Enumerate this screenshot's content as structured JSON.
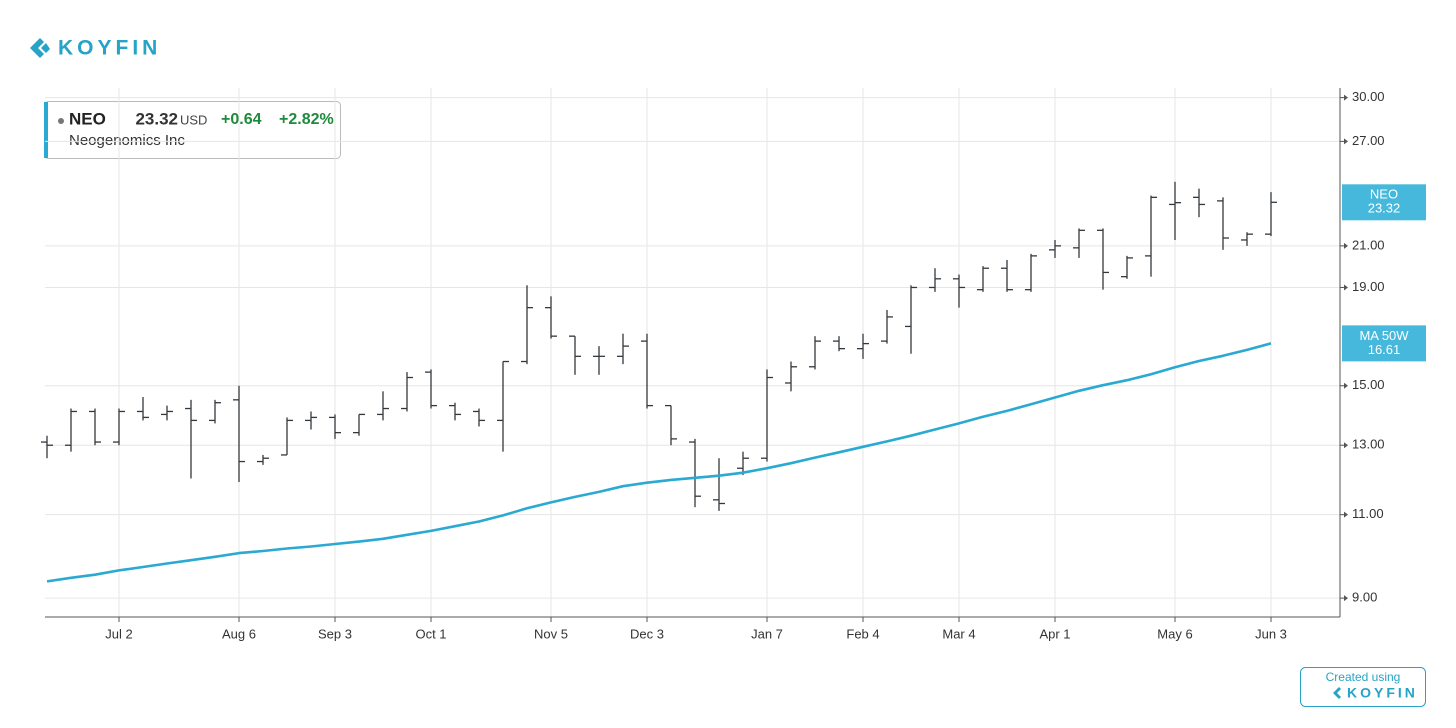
{
  "brand": {
    "logo": "KOYFIN",
    "footer_caption": "Created using",
    "footer_logo": "KOYFIN"
  },
  "quote": {
    "symbol": "NEO",
    "price": 23.32,
    "currency": "USD",
    "change": "+0.64",
    "change_percent": "+2.82%",
    "company": "Neogenomics Inc"
  },
  "chart_data": {
    "type": "ohlc",
    "log": true,
    "grid": true,
    "categories": [
      null,
      null,
      null,
      "Jul 2",
      null,
      null,
      null,
      null,
      "Aug 6",
      null,
      null,
      null,
      "Sep 3",
      null,
      null,
      null,
      "Oct 1",
      null,
      null,
      null,
      null,
      "Nov 5",
      null,
      null,
      null,
      "Dec 3",
      null,
      null,
      null,
      null,
      "Jan 7",
      null,
      null,
      null,
      "Feb 4",
      null,
      null,
      null,
      "Mar 4",
      null,
      null,
      null,
      "Apr 1",
      null,
      null,
      null,
      null,
      "May 6",
      null,
      null,
      null,
      "Jun 3"
    ],
    "ylim": [
      8.6,
      30.7
    ],
    "yticks": [
      {
        "value": 9,
        "label": "9.00"
      },
      {
        "value": 11,
        "label": "11.00"
      },
      {
        "value": 13,
        "label": "13.00"
      },
      {
        "value": 15,
        "label": "15.00"
      },
      {
        "value": 19,
        "label": "19.00"
      },
      {
        "value": 21,
        "label": "21.00"
      },
      {
        "value": 27,
        "label": "27.00"
      },
      {
        "value": 30,
        "label": "30.00"
      }
    ],
    "series": [
      {
        "name": "NEO",
        "type": "ohlc",
        "color": "#33383d",
        "open": [
          13.1,
          13.0,
          14.1,
          13.1,
          14.1,
          14.0,
          14.2,
          13.8,
          14.5,
          12.5,
          12.7,
          13.8,
          13.9,
          13.4,
          14.0,
          14.2,
          15.5,
          14.3,
          14.1,
          13.8,
          15.9,
          18.1,
          16.9,
          16.1,
          16.1,
          16.7,
          14.3,
          13.1,
          11.4,
          12.3,
          12.6,
          15.1,
          15.7,
          16.7,
          16.4,
          16.7,
          17.3,
          19.0,
          19.4,
          18.9,
          19.9,
          18.9,
          20.8,
          20.9,
          21.8,
          19.5,
          20.5,
          23.2,
          23.6,
          23.4,
          21.3,
          21.6
        ],
        "high": [
          13.3,
          14.2,
          14.2,
          14.2,
          14.6,
          14.3,
          14.5,
          14.5,
          15.0,
          12.7,
          13.9,
          14.1,
          14.0,
          14.0,
          14.8,
          15.5,
          15.6,
          14.4,
          14.2,
          15.9,
          19.1,
          18.6,
          16.9,
          16.5,
          17.0,
          17.0,
          14.3,
          13.2,
          12.6,
          12.8,
          15.6,
          15.9,
          16.9,
          16.9,
          17.0,
          18.0,
          19.1,
          19.9,
          19.6,
          20.0,
          20.3,
          20.6,
          21.3,
          21.9,
          21.9,
          20.5,
          23.7,
          24.5,
          24.1,
          23.6,
          21.7,
          23.9
        ],
        "low": [
          12.6,
          12.8,
          13.0,
          13.0,
          13.8,
          13.8,
          12.0,
          13.7,
          11.9,
          12.4,
          12.7,
          13.5,
          13.2,
          13.3,
          13.8,
          14.1,
          14.2,
          13.8,
          13.6,
          12.8,
          15.8,
          16.8,
          15.4,
          15.4,
          15.8,
          14.2,
          13.0,
          11.2,
          11.1,
          12.1,
          12.5,
          14.8,
          15.6,
          16.3,
          16.0,
          16.6,
          16.2,
          18.8,
          18.1,
          18.8,
          18.8,
          18.8,
          20.4,
          20.4,
          18.9,
          19.4,
          19.5,
          21.3,
          22.5,
          20.8,
          21.0,
          21.5
        ],
        "close": [
          13.0,
          14.1,
          13.1,
          14.1,
          13.9,
          14.1,
          13.8,
          14.4,
          12.5,
          12.6,
          13.8,
          13.9,
          13.4,
          14.0,
          14.2,
          15.3,
          14.3,
          14.0,
          13.8,
          15.9,
          18.1,
          16.9,
          16.1,
          16.1,
          16.5,
          14.3,
          13.2,
          11.5,
          11.3,
          12.6,
          15.3,
          15.7,
          16.7,
          16.4,
          16.6,
          17.7,
          19.0,
          19.4,
          19.0,
          19.9,
          18.9,
          20.5,
          21.0,
          21.8,
          19.7,
          20.4,
          23.6,
          23.3,
          23.2,
          21.4,
          21.6,
          23.32
        ]
      },
      {
        "name": "MA 50W",
        "type": "line",
        "color": "#2aa9d2",
        "values": [
          9.37,
          9.45,
          9.52,
          9.62,
          9.7,
          9.78,
          9.86,
          9.94,
          10.03,
          10.08,
          10.14,
          10.19,
          10.25,
          10.31,
          10.38,
          10.48,
          10.58,
          10.7,
          10.82,
          10.98,
          11.17,
          11.33,
          11.48,
          11.62,
          11.78,
          11.88,
          11.96,
          12.02,
          12.08,
          12.17,
          12.3,
          12.45,
          12.62,
          12.78,
          12.95,
          13.12,
          13.3,
          13.5,
          13.7,
          13.92,
          14.12,
          14.35,
          14.58,
          14.82,
          15.02,
          15.2,
          15.42,
          15.68,
          15.92,
          16.12,
          16.35,
          16.61
        ]
      }
    ]
  }
}
